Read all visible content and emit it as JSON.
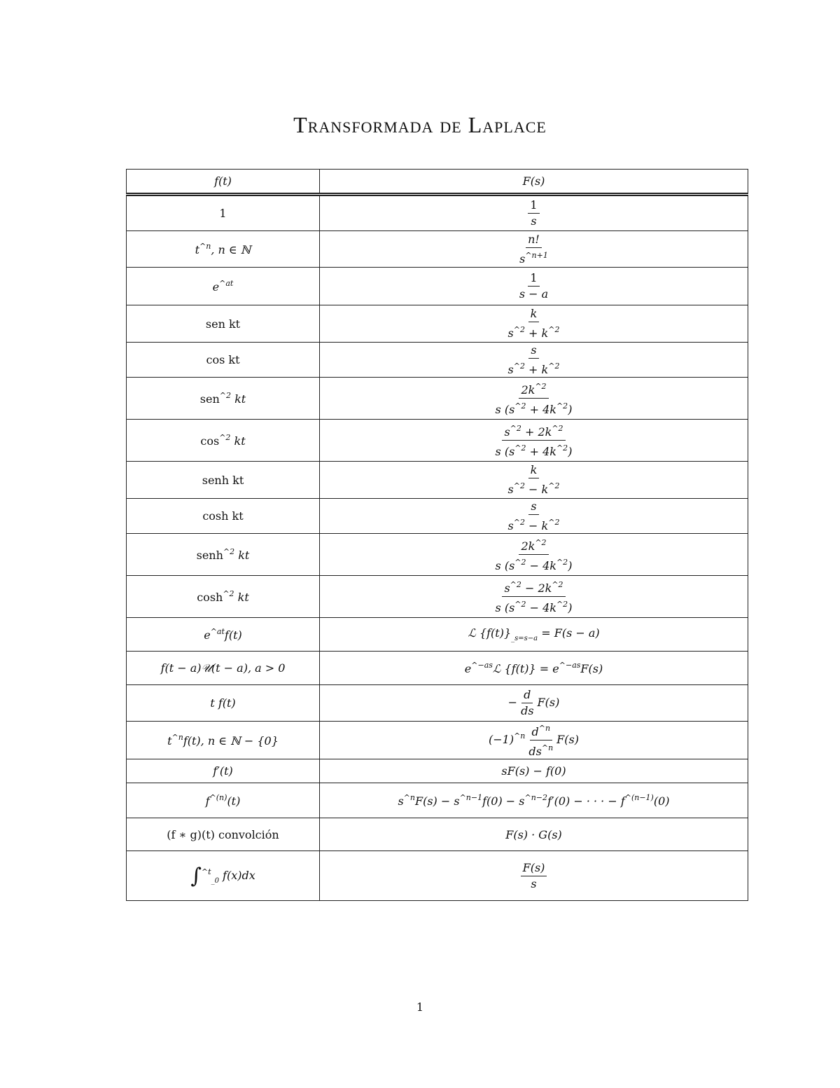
{
  "title": "Transformada de Laplace",
  "page_number": "1",
  "header": {
    "left": [
      "f(t)"
    ],
    "right": [
      "F(s)"
    ]
  },
  "rows": [
    {
      "left": [
        "1"
      ],
      "right": {
        "num": [
          "1"
        ],
        "den": [
          "s"
        ]
      }
    },
    {
      "left": [
        "t",
        "^n",
        ", n ∈ ℕ"
      ],
      "right": {
        "num": [
          "n!"
        ],
        "den": [
          "s",
          "^n+1"
        ]
      }
    },
    {
      "left": [
        "e",
        "^at"
      ],
      "right": {
        "num": [
          "1"
        ],
        "den": [
          "s − a"
        ]
      }
    },
    {
      "left": [
        "sen kt"
      ],
      "right": {
        "num": [
          "k"
        ],
        "den": [
          "s",
          "^2",
          " + k",
          "^2"
        ]
      }
    },
    {
      "left": [
        "cos kt"
      ],
      "right": {
        "num": [
          "s"
        ],
        "den": [
          "s",
          "^2",
          " + k",
          "^2"
        ]
      }
    },
    {
      "left": [
        "sen",
        "^2",
        " kt"
      ],
      "right": {
        "num": [
          "2k",
          "^2"
        ],
        "den": [
          "s (s",
          "^2",
          " + 4k",
          "^2",
          ")"
        ]
      }
    },
    {
      "left": [
        "cos",
        "^2",
        " kt"
      ],
      "right": {
        "num": [
          "s",
          "^2",
          " + 2k",
          "^2"
        ],
        "den": [
          "s (s",
          "^2",
          " + 4k",
          "^2",
          ")"
        ]
      }
    },
    {
      "left": [
        "senh kt"
      ],
      "right": {
        "num": [
          "k"
        ],
        "den": [
          "s",
          "^2",
          " − k",
          "^2"
        ]
      }
    },
    {
      "left": [
        "cosh kt"
      ],
      "right": {
        "num": [
          "s"
        ],
        "den": [
          "s",
          "^2",
          " − k",
          "^2"
        ]
      }
    },
    {
      "left": [
        "senh",
        "^2",
        " kt"
      ],
      "right": {
        "num": [
          "2k",
          "^2"
        ],
        "den": [
          "s (s",
          "^2",
          " − 4k",
          "^2",
          ")"
        ]
      }
    },
    {
      "left": [
        "cosh",
        "^2",
        " kt"
      ],
      "right": {
        "num": [
          "s",
          "^2",
          " − 2k",
          "^2"
        ],
        "den": [
          "s (s",
          "^2",
          " − 4k",
          "^2",
          ")"
        ]
      }
    },
    {
      "left": [
        "e",
        "^at",
        "f(t)"
      ],
      "right": [
        "ℒ {f(t)}",
        "_s=s−a",
        " = F(s − a)"
      ]
    },
    {
      "left": [
        "f(t − a)𝒰(t − a), a > 0"
      ],
      "right": [
        "e",
        "^−as",
        "ℒ {f(t)} = e",
        "^−as",
        "F(s)"
      ]
    },
    {
      "left": [
        "t f(t)"
      ],
      "right": {
        "pre": [
          "−"
        ],
        "num": [
          "d"
        ],
        "den": [
          "ds"
        ],
        "post": [
          "F(s)"
        ]
      }
    },
    {
      "left": [
        "t",
        "^n",
        "f(t), n ∈ ℕ − {0}"
      ],
      "right": {
        "pre": [
          "(−1)",
          "^n"
        ],
        "num": [
          "d",
          "^n"
        ],
        "den": [
          "ds",
          "^n"
        ],
        "post": [
          "F(s)"
        ]
      }
    },
    {
      "left": [
        "f′(t)"
      ],
      "right": [
        "sF(s) − f(0)"
      ]
    },
    {
      "left": [
        "f",
        "^(n)",
        "(t)"
      ],
      "right": [
        "s",
        "^n",
        "F(s) − s",
        "^n−1",
        "f(0) − s",
        "^n−2",
        "f′(0) − · · · − f",
        "^(n−1)",
        "(0)"
      ]
    },
    {
      "left": [
        "(f ∗ g)(t) convolción"
      ],
      "right": [
        "F(s) · G(s)"
      ]
    },
    {
      "left": [
        "∫",
        "^t",
        "_0",
        " f(x)dx"
      ],
      "right": {
        "num": [
          "F(s)"
        ],
        "den": [
          "s"
        ]
      }
    }
  ]
}
